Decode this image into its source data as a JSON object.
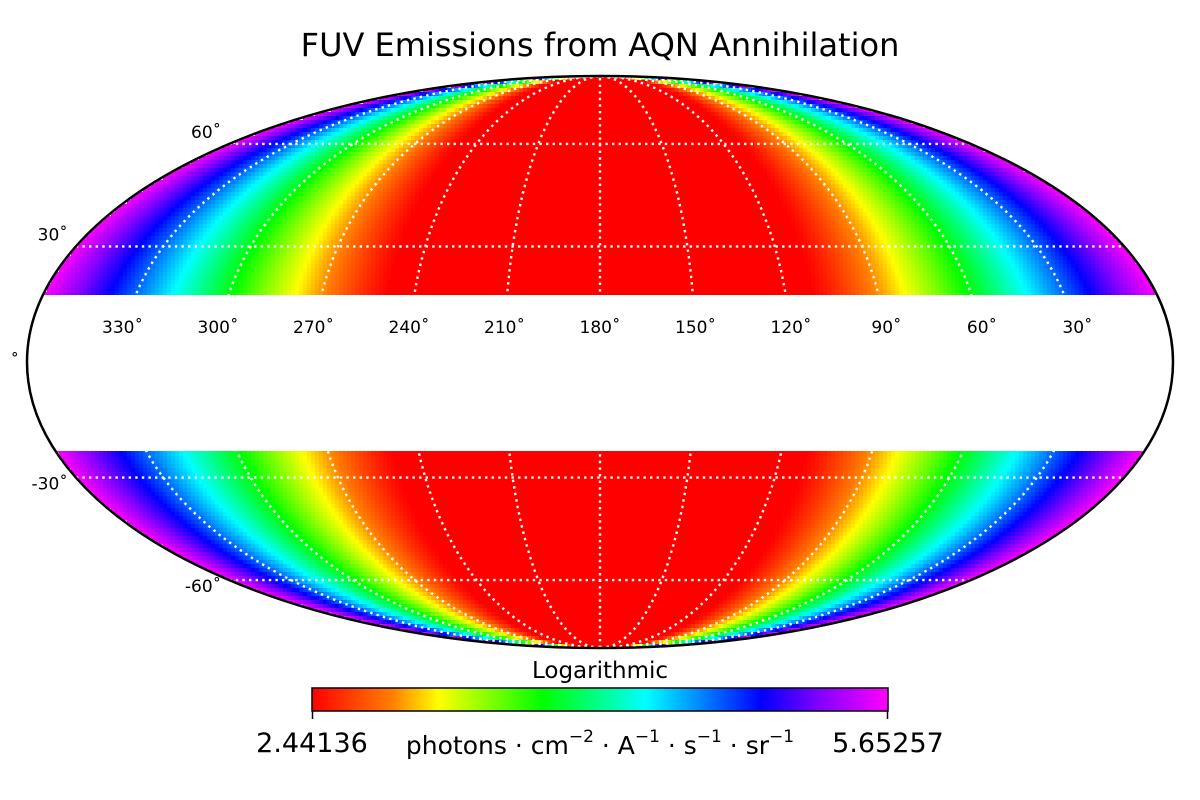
{
  "chart_data": {
    "type": "heatmap",
    "projection": "mollweide",
    "title": "FUV Emissions from AQN Annihilation",
    "colorbar": {
      "label": "Logarithmic",
      "min_label": "2.44136",
      "max_label": "5.65257",
      "min": 2.44136,
      "max": 5.65257,
      "scale": "log",
      "units_prefix": "photons · cm",
      "units": "photons · cm⁻² · A⁻¹ · s⁻¹ · sr⁻¹",
      "colormap": [
        "#ff0000",
        "#ff8000",
        "#ffff00",
        "#00ff00",
        "#00ffff",
        "#0000ff",
        "#8000ff",
        "#ff00ff"
      ]
    },
    "longitude_labels": [
      "330˚",
      "300˚",
      "270˚",
      "240˚",
      "210˚",
      "180˚",
      "150˚",
      "120˚",
      "90˚",
      "60˚",
      "30˚"
    ],
    "longitude_values": [
      330,
      300,
      270,
      240,
      210,
      180,
      150,
      120,
      90,
      60,
      30
    ],
    "latitude_labels": [
      {
        "label": "60˚",
        "value": 60
      },
      {
        "label": "30˚",
        "value": 30
      },
      {
        "label": "˚",
        "value": 0
      },
      {
        "label": "-30˚",
        "value": -30
      },
      {
        "label": "-60˚",
        "value": -60
      }
    ],
    "masked_latitude_band": [
      -20,
      20
    ],
    "grid": true,
    "grid_style": "white dotted",
    "center_longitude": 180
  }
}
